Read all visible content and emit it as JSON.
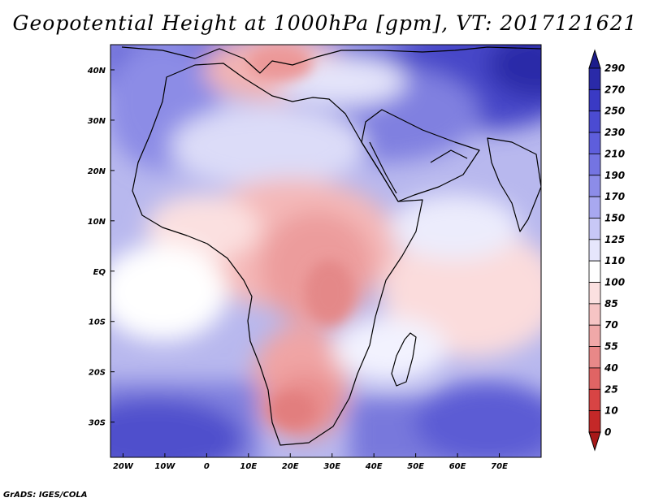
{
  "title": "Geopotential Height at 1000hPa [gpm], VT: 2017121621",
  "credit": "GrADS: IGES/COLA",
  "map": {
    "lon_range": [
      -23,
      80
    ],
    "lat_range": [
      -37,
      45
    ],
    "lat_labels": [
      {
        "lat": 40,
        "text": "40N"
      },
      {
        "lat": 30,
        "text": "30N"
      },
      {
        "lat": 20,
        "text": "20N"
      },
      {
        "lat": 10,
        "text": "10N"
      },
      {
        "lat": 0,
        "text": "EQ"
      },
      {
        "lat": -10,
        "text": "10S"
      },
      {
        "lat": -20,
        "text": "20S"
      },
      {
        "lat": -30,
        "text": "30S"
      }
    ],
    "lon_labels": [
      {
        "lon": -20,
        "text": "20W"
      },
      {
        "lon": -10,
        "text": "10W"
      },
      {
        "lon": 0,
        "text": "0"
      },
      {
        "lon": 10,
        "text": "10E"
      },
      {
        "lon": 20,
        "text": "20E"
      },
      {
        "lon": 30,
        "text": "30E"
      },
      {
        "lon": 40,
        "text": "40E"
      },
      {
        "lon": 50,
        "text": "50E"
      },
      {
        "lon": 60,
        "text": "60E"
      },
      {
        "lon": 70,
        "text": "70E"
      }
    ]
  },
  "colorbar": {
    "levels": [
      "290",
      "270",
      "250",
      "230",
      "210",
      "190",
      "170",
      "150",
      "125",
      "110",
      "100",
      "85",
      "70",
      "55",
      "40",
      "25",
      "10",
      "0"
    ],
    "colors": [
      "#1c1c8c",
      "#2a2aa8",
      "#3a3ac4",
      "#4b4bd2",
      "#5e5edc",
      "#7474e2",
      "#8c8ce8",
      "#a8a8f0",
      "#c8c8f6",
      "#e6e6fc",
      "#ffffff",
      "#fbe0e0",
      "#f6c4c4",
      "#f0a8a8",
      "#e88888",
      "#e06464",
      "#d84444",
      "#c42828",
      "#a81818"
    ]
  }
}
